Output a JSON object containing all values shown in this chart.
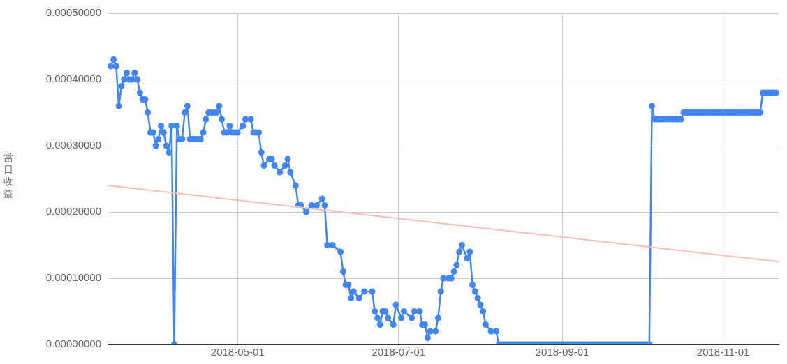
{
  "chart_data": {
    "type": "line",
    "ylabel": "當日收益",
    "marker": "circle",
    "grid": true,
    "xlim": [
      "2018-03-13",
      "2018-11-22"
    ],
    "xticks": [
      "2018-05-01",
      "2018-07-01",
      "2018-09-01",
      "2018-11-01"
    ],
    "ylim": [
      0,
      0.0005
    ],
    "yticks": [
      {
        "value": 0,
        "label": "0.00000000"
      },
      {
        "value": 0.0001,
        "label": "0.00010000"
      },
      {
        "value": 0.0002,
        "label": "0.00020000"
      },
      {
        "value": 0.0003,
        "label": "0.00030000"
      },
      {
        "value": 0.0004,
        "label": "0.00040000"
      },
      {
        "value": 0.0005,
        "label": "0.00050000"
      }
    ],
    "series": [
      {
        "color": "#4285f4",
        "x": [
          "2018-03-14",
          "2018-03-15",
          "2018-03-16",
          "2018-03-17",
          "2018-03-18",
          "2018-03-19",
          "2018-03-20",
          "2018-03-21",
          "2018-03-22",
          "2018-03-23",
          "2018-03-24",
          "2018-03-25",
          "2018-03-26",
          "2018-03-27",
          "2018-03-28",
          "2018-03-29",
          "2018-03-30",
          "2018-03-31",
          "2018-04-01",
          "2018-04-02",
          "2018-04-03",
          "2018-04-04",
          "2018-04-05",
          "2018-04-06",
          "2018-04-07",
          "2018-04-08",
          "2018-04-09",
          "2018-04-10",
          "2018-04-11",
          "2018-04-12",
          "2018-04-13",
          "2018-04-14",
          "2018-04-15",
          "2018-04-16",
          "2018-04-17",
          "2018-04-18",
          "2018-04-19",
          "2018-04-20",
          "2018-04-21",
          "2018-04-22",
          "2018-04-23",
          "2018-04-24",
          "2018-04-25",
          "2018-04-26",
          "2018-04-27",
          "2018-04-28",
          "2018-04-29",
          "2018-04-30",
          "2018-05-01",
          "2018-05-03",
          "2018-05-04",
          "2018-05-06",
          "2018-05-07",
          "2018-05-08",
          "2018-05-09",
          "2018-05-10",
          "2018-05-11",
          "2018-05-13",
          "2018-05-14",
          "2018-05-15",
          "2018-05-17",
          "2018-05-19",
          "2018-05-20",
          "2018-05-21",
          "2018-05-23",
          "2018-05-24",
          "2018-05-25",
          "2018-05-27",
          "2018-05-29",
          "2018-05-31",
          "2018-06-02",
          "2018-06-03",
          "2018-06-04",
          "2018-06-06",
          "2018-06-09",
          "2018-06-10",
          "2018-06-11",
          "2018-06-12",
          "2018-06-13",
          "2018-06-14",
          "2018-06-16",
          "2018-06-18",
          "2018-06-21",
          "2018-06-22",
          "2018-06-23",
          "2018-06-24",
          "2018-06-25",
          "2018-06-26",
          "2018-06-27",
          "2018-06-29",
          "2018-06-30",
          "2018-07-02",
          "2018-07-03",
          "2018-07-06",
          "2018-07-07",
          "2018-07-09",
          "2018-07-10",
          "2018-07-11",
          "2018-07-12",
          "2018-07-13",
          "2018-07-15",
          "2018-07-16",
          "2018-07-17",
          "2018-07-18",
          "2018-07-20",
          "2018-07-21",
          "2018-07-22",
          "2018-07-23",
          "2018-07-24",
          "2018-07-25",
          "2018-07-27",
          "2018-07-28",
          "2018-07-29",
          "2018-07-30",
          "2018-07-31",
          "2018-08-01",
          "2018-08-02",
          "2018-08-03",
          "2018-08-05",
          "2018-08-07",
          "2018-08-08",
          "2018-08-09",
          "2018-08-10",
          "2018-08-11",
          "2018-08-12",
          "2018-08-13",
          "2018-08-14",
          "2018-08-15",
          "2018-08-16",
          "2018-08-17",
          "2018-08-18",
          "2018-08-19",
          "2018-08-20",
          "2018-08-21",
          "2018-08-22",
          "2018-08-23",
          "2018-08-24",
          "2018-08-25",
          "2018-08-26",
          "2018-08-27",
          "2018-08-28",
          "2018-08-29",
          "2018-08-30",
          "2018-08-31",
          "2018-09-01",
          "2018-09-02",
          "2018-09-03",
          "2018-09-04",
          "2018-09-05",
          "2018-09-06",
          "2018-09-07",
          "2018-09-08",
          "2018-09-09",
          "2018-09-10",
          "2018-09-11",
          "2018-09-12",
          "2018-09-13",
          "2018-09-14",
          "2018-09-15",
          "2018-09-16",
          "2018-09-17",
          "2018-09-18",
          "2018-09-19",
          "2018-09-20",
          "2018-09-21",
          "2018-09-22",
          "2018-09-23",
          "2018-09-24",
          "2018-09-25",
          "2018-09-26",
          "2018-09-27",
          "2018-09-28",
          "2018-09-29",
          "2018-09-30",
          "2018-10-01",
          "2018-10-02",
          "2018-10-03",
          "2018-10-04",
          "2018-10-05",
          "2018-10-06",
          "2018-10-07",
          "2018-10-08",
          "2018-10-09",
          "2018-10-10",
          "2018-10-11",
          "2018-10-12",
          "2018-10-13",
          "2018-10-14",
          "2018-10-15",
          "2018-10-16",
          "2018-10-17",
          "2018-10-18",
          "2018-10-19",
          "2018-10-20",
          "2018-10-21",
          "2018-10-22",
          "2018-10-23",
          "2018-10-24",
          "2018-10-25",
          "2018-10-26",
          "2018-10-27",
          "2018-10-28",
          "2018-10-29",
          "2018-10-30",
          "2018-10-31",
          "2018-11-01",
          "2018-11-02",
          "2018-11-03",
          "2018-11-04",
          "2018-11-05",
          "2018-11-06",
          "2018-11-07",
          "2018-11-08",
          "2018-11-09",
          "2018-11-10",
          "2018-11-11",
          "2018-11-12",
          "2018-11-13",
          "2018-11-14",
          "2018-11-15",
          "2018-11-16",
          "2018-11-17",
          "2018-11-18",
          "2018-11-19",
          "2018-11-20",
          "2018-11-21"
        ],
        "values": [
          0.00042,
          0.00043,
          0.00042,
          0.00036,
          0.00039,
          0.0004,
          0.00041,
          0.0004,
          0.0004,
          0.00041,
          0.0004,
          0.00038,
          0.00037,
          0.00037,
          0.00035,
          0.00032,
          0.00032,
          0.0003,
          0.00031,
          0.00033,
          0.00032,
          0.0003,
          0.00029,
          0.00033,
          0,
          0.00033,
          0.00031,
          0.00031,
          0.00035,
          0.00036,
          0.00031,
          0.00031,
          0.00031,
          0.00031,
          0.00031,
          0.00032,
          0.00034,
          0.00035,
          0.00035,
          0.00035,
          0.00035,
          0.00036,
          0.00034,
          0.00032,
          0.00032,
          0.00033,
          0.00032,
          0.00032,
          0.00032,
          0.00033,
          0.00034,
          0.00034,
          0.00032,
          0.00032,
          0.00032,
          0.00029,
          0.00027,
          0.00028,
          0.00028,
          0.00027,
          0.00026,
          0.00027,
          0.00028,
          0.00026,
          0.00024,
          0.00021,
          0.00021,
          0.0002,
          0.00021,
          0.00021,
          0.00022,
          0.00021,
          0.00015,
          0.00015,
          0.00014,
          0.00011,
          9e-05,
          9e-05,
          7e-05,
          8e-05,
          7e-05,
          8e-05,
          8e-05,
          5e-05,
          4e-05,
          3e-05,
          5e-05,
          5e-05,
          4e-05,
          3e-05,
          6e-05,
          4e-05,
          5e-05,
          4e-05,
          5e-05,
          5e-05,
          3e-05,
          3e-05,
          1e-05,
          2e-05,
          2e-05,
          4e-05,
          8e-05,
          0.0001,
          0.0001,
          0.0001,
          0.00011,
          0.00012,
          0.00014,
          0.00015,
          0.00013,
          0.00014,
          9e-05,
          8e-05,
          7e-05,
          6e-05,
          5e-05,
          3e-05,
          2e-05,
          2e-05,
          0,
          0,
          0,
          0,
          0,
          0,
          0,
          0,
          0,
          0,
          0,
          0,
          0,
          0,
          0,
          0,
          0,
          0,
          0,
          0,
          0,
          0,
          0,
          0,
          0,
          0,
          0,
          0,
          0,
          0,
          0,
          0,
          0,
          0,
          0,
          0,
          0,
          0,
          0,
          0,
          0,
          0,
          0,
          0,
          0,
          0,
          0,
          0,
          0,
          0,
          0,
          0,
          0,
          0,
          0,
          0,
          0,
          0,
          0.00036,
          0.00034,
          0.00034,
          0.00034,
          0.00034,
          0.00034,
          0.00034,
          0.00034,
          0.00034,
          0.00034,
          0.00034,
          0.00034,
          0.00035,
          0.00035,
          0.00035,
          0.00035,
          0.00035,
          0.00035,
          0.00035,
          0.00035,
          0.00035,
          0.00035,
          0.00035,
          0.00035,
          0.00035,
          0.00035,
          0.00035,
          0.00035,
          0.00035,
          0.00035,
          0.00035,
          0.00035,
          0.00035,
          0.00035,
          0.00035,
          0.00035,
          0.00035,
          0.00035,
          0.00035,
          0.00035,
          0.00035,
          0.00035,
          0.00038,
          0.00038,
          0.00038,
          0.00038,
          0.00038,
          0.00038
        ]
      },
      {
        "color": "#efc2b7",
        "marker": "none",
        "x": [
          "2018-03-13",
          "2018-11-22"
        ],
        "values": [
          0.00024,
          0.000125
        ]
      }
    ]
  }
}
